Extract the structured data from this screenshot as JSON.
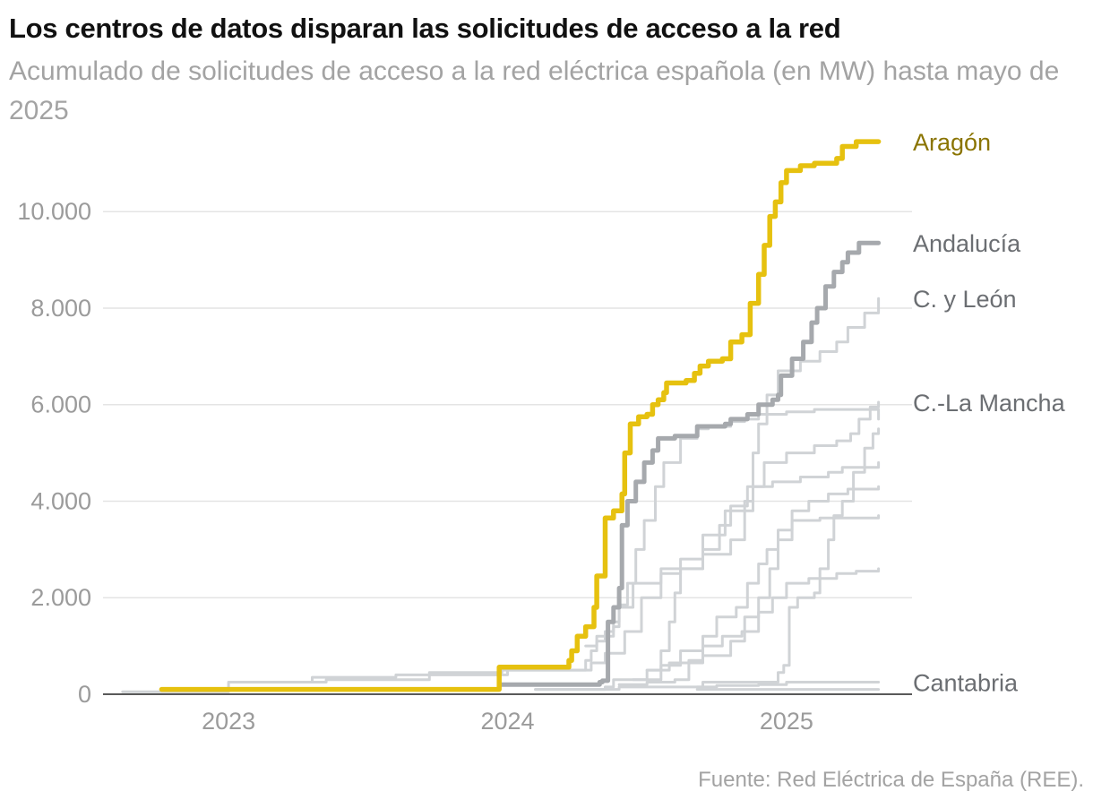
{
  "title": "Los centros de datos disparan las solicitudes de acceso a la red",
  "subtitle": "Acumulado de solicitudes de acceso a la red eléctrica española (en MW) hasta mayo de 2025",
  "source": "Fuente: Red Eléctrica de España (REE).",
  "colors": {
    "aragon": "#e6c10f",
    "aragon_label": "#8a7400",
    "andalucia": "#a6a9ad",
    "others": "#d0d3d6",
    "label": "#6b6e72",
    "axis": "#9b9b9b",
    "grid": "#e4e4e4",
    "baseline": "#222222"
  },
  "chart_data": {
    "type": "line",
    "x_unit": "year (decimal)",
    "y_unit": "MW",
    "xlim": [
      2022.55,
      2025.45
    ],
    "ylim": [
      0,
      11600
    ],
    "x_ticks": [
      2023,
      2024,
      2025
    ],
    "x_tick_labels": [
      "2023",
      "2024",
      "2025"
    ],
    "y_ticks": [
      0,
      2000,
      4000,
      6000,
      8000,
      10000
    ],
    "y_tick_labels": [
      "0",
      "2.000",
      "4.000",
      "6.000",
      "8.000",
      "10.000"
    ],
    "grid": true,
    "series": [
      {
        "name": "Aragón",
        "label": "Aragón",
        "highlight": "primary",
        "points": [
          [
            2022.76,
            100
          ],
          [
            2023.66,
            100
          ],
          [
            2023.96,
            100
          ],
          [
            2023.97,
            560
          ],
          [
            2024.2,
            560
          ],
          [
            2024.22,
            700
          ],
          [
            2024.23,
            900
          ],
          [
            2024.25,
            1200
          ],
          [
            2024.28,
            1400
          ],
          [
            2024.31,
            1800
          ],
          [
            2024.32,
            2450
          ],
          [
            2024.34,
            2450
          ],
          [
            2024.35,
            3650
          ],
          [
            2024.38,
            3800
          ],
          [
            2024.4,
            3800
          ],
          [
            2024.41,
            4150
          ],
          [
            2024.42,
            5000
          ],
          [
            2024.44,
            5600
          ],
          [
            2024.47,
            5750
          ],
          [
            2024.5,
            5800
          ],
          [
            2024.52,
            6000
          ],
          [
            2024.54,
            6100
          ],
          [
            2024.56,
            6250
          ],
          [
            2024.57,
            6450
          ],
          [
            2024.64,
            6500
          ],
          [
            2024.67,
            6650
          ],
          [
            2024.69,
            6800
          ],
          [
            2024.72,
            6900
          ],
          [
            2024.77,
            6950
          ],
          [
            2024.8,
            7300
          ],
          [
            2024.84,
            7450
          ],
          [
            2024.87,
            8100
          ],
          [
            2024.9,
            8700
          ],
          [
            2024.92,
            9300
          ],
          [
            2024.94,
            9900
          ],
          [
            2024.96,
            10200
          ],
          [
            2024.98,
            10600
          ],
          [
            2025,
            10850
          ],
          [
            2025.05,
            10950
          ],
          [
            2025.1,
            11000
          ],
          [
            2025.18,
            11100
          ],
          [
            2025.2,
            11350
          ],
          [
            2025.25,
            11450
          ],
          [
            2025.33,
            11450
          ]
        ]
      },
      {
        "name": "Andalucía",
        "label": "Andalucía",
        "highlight": "secondary",
        "points": [
          [
            2023.67,
            100
          ],
          [
            2023.96,
            100
          ],
          [
            2023.97,
            200
          ],
          [
            2024.3,
            200
          ],
          [
            2024.33,
            250
          ],
          [
            2024.34,
            280
          ],
          [
            2024.36,
            1500
          ],
          [
            2024.38,
            1800
          ],
          [
            2024.4,
            2200
          ],
          [
            2024.41,
            3500
          ],
          [
            2024.43,
            4000
          ],
          [
            2024.46,
            4400
          ],
          [
            2024.49,
            4800
          ],
          [
            2024.52,
            5050
          ],
          [
            2024.54,
            5300
          ],
          [
            2024.6,
            5350
          ],
          [
            2024.68,
            5550
          ],
          [
            2024.78,
            5600
          ],
          [
            2024.8,
            5700
          ],
          [
            2024.86,
            5800
          ],
          [
            2024.9,
            6000
          ],
          [
            2024.95,
            6100
          ],
          [
            2024.97,
            6200
          ],
          [
            2024.98,
            6600
          ],
          [
            2025.02,
            6950
          ],
          [
            2025.06,
            7300
          ],
          [
            2025.09,
            7700
          ],
          [
            2025.11,
            8000
          ],
          [
            2025.14,
            8450
          ],
          [
            2025.17,
            8750
          ],
          [
            2025.2,
            8950
          ],
          [
            2025.22,
            9150
          ],
          [
            2025.26,
            9350
          ],
          [
            2025.33,
            9350
          ]
        ]
      },
      {
        "name": "C. y León",
        "label": "C. y León",
        "highlight": "labeled",
        "points": [
          [
            2024.28,
            1000
          ],
          [
            2024.32,
            1200
          ],
          [
            2024.38,
            1400
          ],
          [
            2024.4,
            1800
          ],
          [
            2024.45,
            2300
          ],
          [
            2024.55,
            2600
          ],
          [
            2024.7,
            2900
          ],
          [
            2024.8,
            3200
          ],
          [
            2024.85,
            4000
          ],
          [
            2024.88,
            5000
          ],
          [
            2024.9,
            5600
          ],
          [
            2024.93,
            6200
          ],
          [
            2024.97,
            6700
          ],
          [
            2025.05,
            6900
          ],
          [
            2025.12,
            7100
          ],
          [
            2025.18,
            7300
          ],
          [
            2025.22,
            7600
          ],
          [
            2025.28,
            7900
          ],
          [
            2025.33,
            8200
          ]
        ]
      },
      {
        "name": "C.-La Mancha",
        "label": "C.-La Mancha",
        "highlight": "labeled",
        "points": [
          [
            2024.5,
            500
          ],
          [
            2024.55,
            900
          ],
          [
            2024.58,
            1500
          ],
          [
            2024.6,
            2100
          ],
          [
            2024.62,
            2600
          ],
          [
            2024.7,
            3000
          ],
          [
            2024.76,
            3500
          ],
          [
            2024.8,
            3900
          ],
          [
            2024.86,
            4300
          ],
          [
            2024.92,
            4800
          ],
          [
            2025,
            5000
          ],
          [
            2025.1,
            5150
          ],
          [
            2025.18,
            5250
          ],
          [
            2025.23,
            5400
          ],
          [
            2025.26,
            5700
          ],
          [
            2025.3,
            5950
          ],
          [
            2025.33,
            6050
          ]
        ]
      },
      {
        "name": "Cantabria",
        "label": "Cantabria",
        "highlight": "labeled",
        "points": [
          [
            2024.68,
            150
          ],
          [
            2024.75,
            180
          ],
          [
            2024.9,
            200
          ],
          [
            2025,
            250
          ],
          [
            2025.33,
            250
          ]
        ]
      },
      {
        "name": "",
        "points": [
          [
            2022.62,
            50
          ],
          [
            2022.9,
            50
          ],
          [
            2023.0,
            250
          ],
          [
            2023.35,
            300
          ],
          [
            2023.68,
            300
          ],
          [
            2023.72,
            450
          ],
          [
            2023.96,
            450
          ],
          [
            2023.98,
            500
          ],
          [
            2024.25,
            500
          ],
          [
            2024.28,
            700
          ],
          [
            2024.3,
            900
          ],
          [
            2024.32,
            1100
          ],
          [
            2024.35,
            1300
          ],
          [
            2024.38,
            1500
          ],
          [
            2024.4,
            1850
          ],
          [
            2024.43,
            2300
          ],
          [
            2024.46,
            3000
          ],
          [
            2024.49,
            3600
          ],
          [
            2024.53,
            4300
          ],
          [
            2024.56,
            4800
          ],
          [
            2024.62,
            5300
          ],
          [
            2024.68,
            5500
          ],
          [
            2024.72,
            5550
          ],
          [
            2024.8,
            5650
          ],
          [
            2024.85,
            5700
          ],
          [
            2024.9,
            5800
          ],
          [
            2025,
            5850
          ],
          [
            2025.1,
            5900
          ],
          [
            2025.33,
            5700
          ]
        ]
      },
      {
        "name": "",
        "points": [
          [
            2023.05,
            250
          ],
          [
            2023.3,
            350
          ],
          [
            2023.6,
            400
          ],
          [
            2023.9,
            400
          ],
          [
            2024.0,
            500
          ],
          [
            2024.25,
            500
          ],
          [
            2024.3,
            650
          ],
          [
            2024.35,
            850
          ],
          [
            2024.42,
            1300
          ],
          [
            2024.48,
            2000
          ],
          [
            2024.55,
            2500
          ],
          [
            2024.62,
            2800
          ],
          [
            2024.7,
            3300
          ],
          [
            2024.78,
            3800
          ],
          [
            2024.88,
            4300
          ],
          [
            2024.95,
            4400
          ],
          [
            2025.05,
            4500
          ],
          [
            2025.15,
            4600
          ],
          [
            2025.2,
            4700
          ],
          [
            2025.33,
            4800
          ]
        ]
      },
      {
        "name": "",
        "points": [
          [
            2024.1,
            100
          ],
          [
            2024.35,
            150
          ],
          [
            2024.38,
            300
          ],
          [
            2024.5,
            500
          ],
          [
            2024.58,
            650
          ],
          [
            2024.7,
            800
          ],
          [
            2024.8,
            1100
          ],
          [
            2024.85,
            1600
          ],
          [
            2024.9,
            2000
          ],
          [
            2024.94,
            2600
          ],
          [
            2024.97,
            3200
          ],
          [
            2025.02,
            3800
          ],
          [
            2025.08,
            4000
          ],
          [
            2025.15,
            4150
          ],
          [
            2025.22,
            4250
          ],
          [
            2025.33,
            4300
          ]
        ]
      },
      {
        "name": "",
        "points": [
          [
            2024.4,
            200
          ],
          [
            2024.5,
            250
          ],
          [
            2024.6,
            300
          ],
          [
            2024.65,
            700
          ],
          [
            2024.7,
            1200
          ],
          [
            2024.75,
            1600
          ],
          [
            2024.82,
            1800
          ],
          [
            2024.86,
            2300
          ],
          [
            2024.9,
            2700
          ],
          [
            2024.93,
            3000
          ],
          [
            2024.97,
            3400
          ],
          [
            2025.02,
            3600
          ],
          [
            2025.08,
            3600
          ],
          [
            2025.12,
            3650
          ],
          [
            2025.16,
            3650
          ],
          [
            2025.33,
            3700
          ]
        ]
      },
      {
        "name": "",
        "points": [
          [
            2024.45,
            300
          ],
          [
            2024.55,
            600
          ],
          [
            2024.62,
            900
          ],
          [
            2024.7,
            1000
          ],
          [
            2024.77,
            1200
          ],
          [
            2024.84,
            1300
          ],
          [
            2024.9,
            1700
          ],
          [
            2024.95,
            2000
          ],
          [
            2025.0,
            2300
          ],
          [
            2025.08,
            2400
          ],
          [
            2025.18,
            2500
          ],
          [
            2025.25,
            2550
          ],
          [
            2025.33,
            2600
          ]
        ]
      },
      {
        "name": "",
        "points": [
          [
            2024.1,
            100
          ],
          [
            2024.4,
            150
          ],
          [
            2024.7,
            250
          ],
          [
            2024.95,
            250
          ],
          [
            2024.97,
            450
          ],
          [
            2024.99,
            600
          ],
          [
            2025.01,
            1800
          ],
          [
            2025.04,
            2000
          ],
          [
            2025.07,
            2000
          ],
          [
            2025.1,
            2100
          ],
          [
            2025.12,
            2600
          ],
          [
            2025.15,
            3200
          ],
          [
            2025.17,
            3700
          ],
          [
            2025.2,
            4000
          ],
          [
            2025.24,
            4600
          ],
          [
            2025.28,
            5100
          ],
          [
            2025.31,
            5400
          ],
          [
            2025.33,
            5500
          ]
        ]
      },
      {
        "name": "",
        "points": [
          [
            2024.68,
            100
          ],
          [
            2025.33,
            100
          ]
        ]
      }
    ]
  }
}
